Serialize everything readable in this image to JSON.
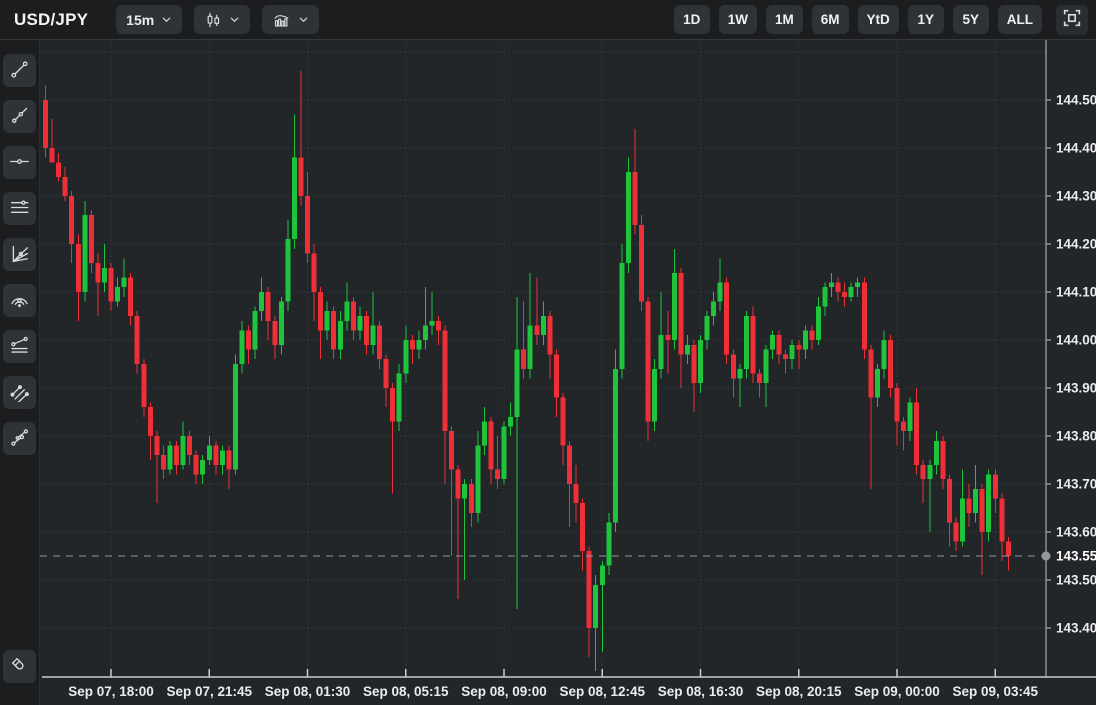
{
  "header": {
    "symbol": "USD/JPY",
    "interval_label": "15m",
    "chart_type_icon": "candlestick-icon",
    "indicators_icon": "histogram-indicator-icon",
    "periods": [
      "1D",
      "1W",
      "1M",
      "6M",
      "YtD",
      "1Y",
      "5Y",
      "ALL"
    ],
    "fullscreen_icon": "fullscreen-icon"
  },
  "toolbar": {
    "tools": [
      "trend-line",
      "ray-line",
      "horizontal-line",
      "parallel-lines",
      "fan-lines",
      "fib-arcs",
      "fib-trend-lines",
      "parallel-channel",
      "disjoint-channel",
      "magnet"
    ]
  },
  "colors": {
    "up_candle": "#1ec43b",
    "down_candle": "#ef2f38",
    "background": "#232629",
    "panel": "#1b1d1f",
    "button": "#2f3236",
    "grid": "#3c4046",
    "axis_line": "#c9ccd0",
    "price_axis_line": "#8b8e94",
    "label_text": "#e9ebee",
    "price_marker": "#9298a0"
  },
  "chart_data": {
    "type": "candlestick",
    "title": "USD/JPY 15m candlestick chart",
    "symbol": "USD/JPY",
    "interval": "15m",
    "first_candle_time": "Sep 07, 15:30",
    "interval_minutes": 15,
    "legend_position": "none",
    "grid": "dotted",
    "ylim": [
      143.3,
      144.62
    ],
    "y_axis_labels": [
      "144.50",
      "144.40",
      "144.30",
      "144.20",
      "144.10",
      "144.00",
      "143.90",
      "143.80",
      "143.70",
      "143.60",
      "143.50",
      "143.40"
    ],
    "x_axis_labels": [
      "Sep 07, 18:00",
      "Sep 07, 21:45",
      "Sep 08, 01:30",
      "Sep 08, 05:15",
      "Sep 08, 09:00",
      "Sep 08, 12:45",
      "Sep 08, 16:30",
      "Sep 08, 20:15",
      "Sep 09, 00:00",
      "Sep 09, 03:45"
    ],
    "current_price": 143.55,
    "current_price_label": "143.55",
    "price_line_style": "dashed",
    "candles_ohlc": [
      [
        144.5,
        144.53,
        144.38,
        144.4
      ],
      [
        144.4,
        144.46,
        144.38,
        144.37
      ],
      [
        144.37,
        144.39,
        144.33,
        144.34
      ],
      [
        144.34,
        144.36,
        144.29,
        144.3
      ],
      [
        144.3,
        144.31,
        144.16,
        144.2
      ],
      [
        144.2,
        144.22,
        144.04,
        144.1
      ],
      [
        144.1,
        144.29,
        144.08,
        144.26
      ],
      [
        144.26,
        144.27,
        144.14,
        144.16
      ],
      [
        144.16,
        144.18,
        144.05,
        144.12
      ],
      [
        144.12,
        144.2,
        144.1,
        144.15
      ],
      [
        144.15,
        144.16,
        144.06,
        144.08
      ],
      [
        144.08,
        144.13,
        144.07,
        144.11
      ],
      [
        144.11,
        144.17,
        144.09,
        144.13
      ],
      [
        144.13,
        144.14,
        144.03,
        144.05
      ],
      [
        144.05,
        144.06,
        143.93,
        143.95
      ],
      [
        143.95,
        143.96,
        143.84,
        143.86
      ],
      [
        143.86,
        143.87,
        143.75,
        143.8
      ],
      [
        143.8,
        143.81,
        143.66,
        143.76
      ],
      [
        143.76,
        143.78,
        143.71,
        143.73
      ],
      [
        143.73,
        143.79,
        143.72,
        143.78
      ],
      [
        143.78,
        143.79,
        143.72,
        143.74
      ],
      [
        143.74,
        143.83,
        143.73,
        143.8
      ],
      [
        143.8,
        143.81,
        143.74,
        143.76
      ],
      [
        143.76,
        143.77,
        143.7,
        143.72
      ],
      [
        143.72,
        143.76,
        143.7,
        143.75
      ],
      [
        143.75,
        143.8,
        143.74,
        143.78
      ],
      [
        143.78,
        143.79,
        143.72,
        143.74
      ],
      [
        143.74,
        143.78,
        143.72,
        143.77
      ],
      [
        143.77,
        143.78,
        143.69,
        143.73
      ],
      [
        143.73,
        143.97,
        143.72,
        143.95
      ],
      [
        143.95,
        144.04,
        143.93,
        144.02
      ],
      [
        144.02,
        144.03,
        143.95,
        143.98
      ],
      [
        143.98,
        144.07,
        143.96,
        144.06
      ],
      [
        144.06,
        144.13,
        144.04,
        144.1
      ],
      [
        144.1,
        144.11,
        144.0,
        144.04
      ],
      [
        144.04,
        144.05,
        143.96,
        143.99
      ],
      [
        143.99,
        144.09,
        143.97,
        144.08
      ],
      [
        144.08,
        144.25,
        144.06,
        144.21
      ],
      [
        144.21,
        144.47,
        144.19,
        144.38
      ],
      [
        144.38,
        144.56,
        144.28,
        144.3
      ],
      [
        144.3,
        144.35,
        144.16,
        144.18
      ],
      [
        144.18,
        144.2,
        144.04,
        144.1
      ],
      [
        144.1,
        144.11,
        143.96,
        144.02
      ],
      [
        144.02,
        144.08,
        144.0,
        144.06
      ],
      [
        144.06,
        144.07,
        143.96,
        143.98
      ],
      [
        143.98,
        144.06,
        143.96,
        144.04
      ],
      [
        144.04,
        144.12,
        144.02,
        144.08
      ],
      [
        144.08,
        144.09,
        144.0,
        144.02
      ],
      [
        144.02,
        144.07,
        144.0,
        144.05
      ],
      [
        144.05,
        144.06,
        143.97,
        143.99
      ],
      [
        143.99,
        144.1,
        143.97,
        144.03
      ],
      [
        144.03,
        144.04,
        143.94,
        143.96
      ],
      [
        143.96,
        143.97,
        143.86,
        143.9
      ],
      [
        143.9,
        143.91,
        143.68,
        143.83
      ],
      [
        143.83,
        143.95,
        143.81,
        143.93
      ],
      [
        143.93,
        144.03,
        143.91,
        144.0
      ],
      [
        144.0,
        144.01,
        143.95,
        143.98
      ],
      [
        143.98,
        144.02,
        143.96,
        144.0
      ],
      [
        144.0,
        144.11,
        143.98,
        144.03
      ],
      [
        144.03,
        144.1,
        144.01,
        144.04
      ],
      [
        144.04,
        144.05,
        143.99,
        144.02
      ],
      [
        144.02,
        144.03,
        143.7,
        143.81
      ],
      [
        143.81,
        143.82,
        143.55,
        143.73
      ],
      [
        143.73,
        143.74,
        143.46,
        143.67
      ],
      [
        143.67,
        143.71,
        143.5,
        143.7
      ],
      [
        143.7,
        143.71,
        143.61,
        143.64
      ],
      [
        143.64,
        143.81,
        143.62,
        143.78
      ],
      [
        143.78,
        143.86,
        143.76,
        143.83
      ],
      [
        143.83,
        143.84,
        143.7,
        143.73
      ],
      [
        143.73,
        143.8,
        143.69,
        143.71
      ],
      [
        143.71,
        143.83,
        143.7,
        143.82
      ],
      [
        143.82,
        143.87,
        143.8,
        143.84
      ],
      [
        143.84,
        144.09,
        143.44,
        143.98
      ],
      [
        143.98,
        144.08,
        143.92,
        143.94
      ],
      [
        143.94,
        144.14,
        143.92,
        144.03
      ],
      [
        144.03,
        144.13,
        143.99,
        144.01
      ],
      [
        144.01,
        144.08,
        143.99,
        144.05
      ],
      [
        144.05,
        144.06,
        143.92,
        143.97
      ],
      [
        143.97,
        143.98,
        143.84,
        143.88
      ],
      [
        143.88,
        143.89,
        143.74,
        143.78
      ],
      [
        143.78,
        143.79,
        143.61,
        143.7
      ],
      [
        143.7,
        143.74,
        143.62,
        143.66
      ],
      [
        143.66,
        143.67,
        143.52,
        143.56
      ],
      [
        143.56,
        143.57,
        143.34,
        143.4
      ],
      [
        143.4,
        143.51,
        143.31,
        143.49
      ],
      [
        143.49,
        143.54,
        143.35,
        143.53
      ],
      [
        143.53,
        143.64,
        143.51,
        143.62
      ],
      [
        143.62,
        143.98,
        143.6,
        143.94
      ],
      [
        143.94,
        144.2,
        143.92,
        144.16
      ],
      [
        144.16,
        144.38,
        144.14,
        144.35
      ],
      [
        144.35,
        144.44,
        144.22,
        144.24
      ],
      [
        144.24,
        144.26,
        144.06,
        144.08
      ],
      [
        144.08,
        144.09,
        143.79,
        143.83
      ],
      [
        143.83,
        143.96,
        143.81,
        143.94
      ],
      [
        143.94,
        144.1,
        143.92,
        144.01
      ],
      [
        144.01,
        144.06,
        143.93,
        144.0
      ],
      [
        144.0,
        144.19,
        143.98,
        144.14
      ],
      [
        144.14,
        144.15,
        143.9,
        143.97
      ],
      [
        143.97,
        144.01,
        143.95,
        143.99
      ],
      [
        143.99,
        144.0,
        143.85,
        143.91
      ],
      [
        143.91,
        144.01,
        143.89,
        144.0
      ],
      [
        144.0,
        144.06,
        143.98,
        144.05
      ],
      [
        144.05,
        144.1,
        144.03,
        144.08
      ],
      [
        144.08,
        144.17,
        144.06,
        144.12
      ],
      [
        144.12,
        144.13,
        143.95,
        143.97
      ],
      [
        143.97,
        143.98,
        143.88,
        143.92
      ],
      [
        143.92,
        143.95,
        143.86,
        143.94
      ],
      [
        143.94,
        144.06,
        143.92,
        144.05
      ],
      [
        144.05,
        144.07,
        143.91,
        143.93
      ],
      [
        143.93,
        143.94,
        143.88,
        143.91
      ],
      [
        143.91,
        143.99,
        143.86,
        143.98
      ],
      [
        143.98,
        144.02,
        143.96,
        144.01
      ],
      [
        144.01,
        144.02,
        143.95,
        143.97
      ],
      [
        143.97,
        143.98,
        143.93,
        143.96
      ],
      [
        143.96,
        144.0,
        143.94,
        143.99
      ],
      [
        143.99,
        144.0,
        143.94,
        143.98
      ],
      [
        143.98,
        144.03,
        143.96,
        144.02
      ],
      [
        144.02,
        144.03,
        143.98,
        144.0
      ],
      [
        144.0,
        144.09,
        143.99,
        144.07
      ],
      [
        144.07,
        144.12,
        144.05,
        144.11
      ],
      [
        144.11,
        144.14,
        144.09,
        144.12
      ],
      [
        144.12,
        144.13,
        144.08,
        144.1
      ],
      [
        144.1,
        144.12,
        144.07,
        144.09
      ],
      [
        144.09,
        144.12,
        144.08,
        144.11
      ],
      [
        144.11,
        144.13,
        144.09,
        144.12
      ],
      [
        144.12,
        144.13,
        143.96,
        143.98
      ],
      [
        143.98,
        143.99,
        143.69,
        143.88
      ],
      [
        143.88,
        143.95,
        143.86,
        143.94
      ],
      [
        143.94,
        144.02,
        143.92,
        144.0
      ],
      [
        144.0,
        144.01,
        143.88,
        143.9
      ],
      [
        143.9,
        143.91,
        143.78,
        143.83
      ],
      [
        143.83,
        143.84,
        143.77,
        143.81
      ],
      [
        143.81,
        143.88,
        143.79,
        143.87
      ],
      [
        143.87,
        143.9,
        143.72,
        143.74
      ],
      [
        143.74,
        143.75,
        143.66,
        143.71
      ],
      [
        143.71,
        143.75,
        143.6,
        143.74
      ],
      [
        143.74,
        143.81,
        143.72,
        143.79
      ],
      [
        143.79,
        143.8,
        143.69,
        143.71
      ],
      [
        143.71,
        143.72,
        143.57,
        143.62
      ],
      [
        143.62,
        143.63,
        143.56,
        143.58
      ],
      [
        143.58,
        143.73,
        143.57,
        143.67
      ],
      [
        143.67,
        143.7,
        143.61,
        143.64
      ],
      [
        143.64,
        143.74,
        143.62,
        143.69
      ],
      [
        143.69,
        143.7,
        143.51,
        143.6
      ],
      [
        143.6,
        143.73,
        143.58,
        143.72
      ],
      [
        143.72,
        143.73,
        143.64,
        143.67
      ],
      [
        143.67,
        143.68,
        143.54,
        143.58
      ],
      [
        143.58,
        143.59,
        143.52,
        143.55
      ]
    ]
  }
}
